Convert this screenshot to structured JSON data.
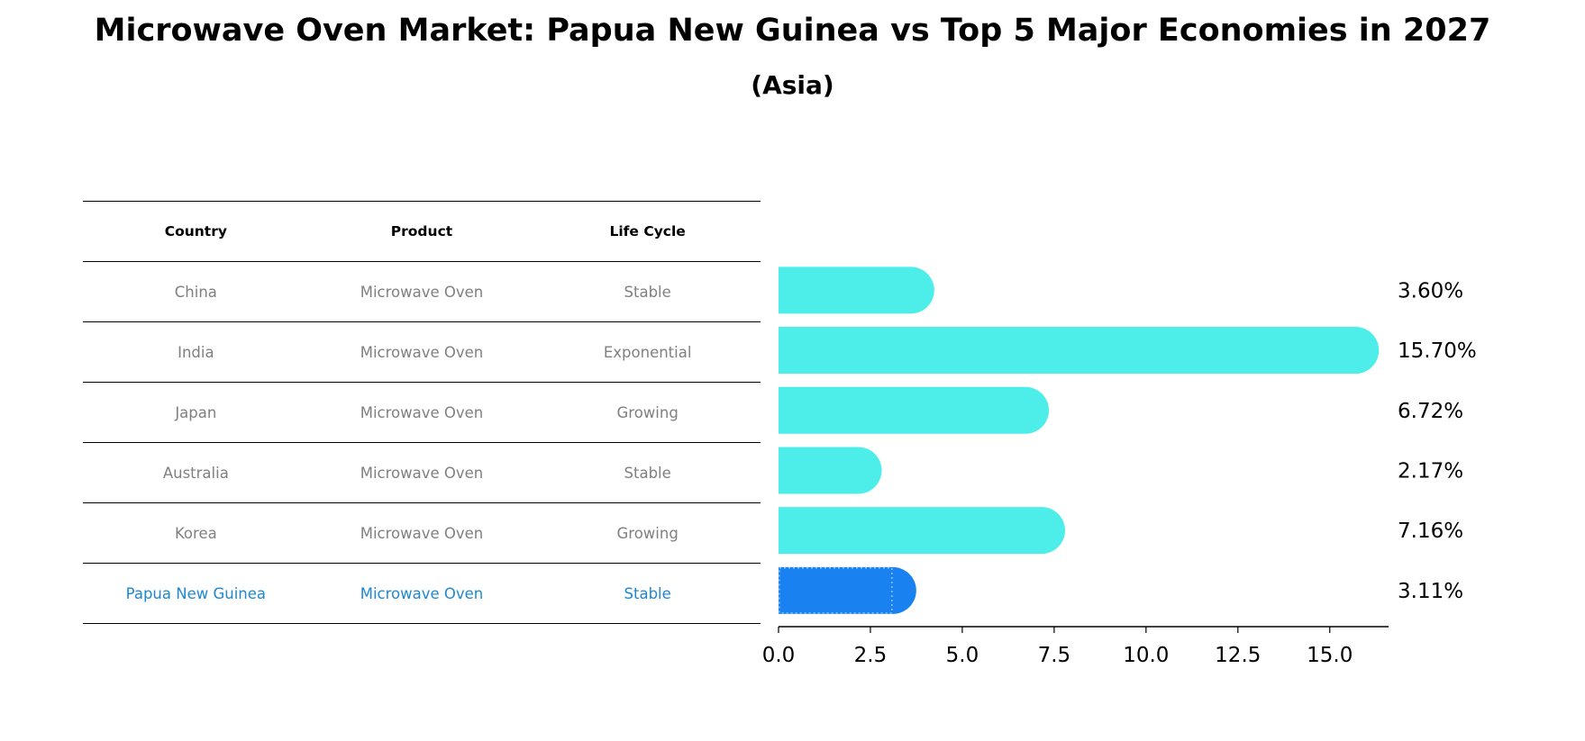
{
  "title": "Microwave Oven Market: Papua New Guinea vs Top 5 Major Economies in 2027",
  "subtitle": "(Asia)",
  "table": {
    "headers": [
      "Country",
      "Product",
      "Life Cycle"
    ],
    "rows": [
      {
        "country": "China",
        "product": "Microwave Oven",
        "life_cycle": "Stable"
      },
      {
        "country": "India",
        "product": "Microwave Oven",
        "life_cycle": "Exponential"
      },
      {
        "country": "Japan",
        "product": "Microwave Oven",
        "life_cycle": "Growing"
      },
      {
        "country": "Australia",
        "product": "Microwave Oven",
        "life_cycle": "Stable"
      },
      {
        "country": "Korea",
        "product": "Microwave Oven",
        "life_cycle": "Growing"
      },
      {
        "country": "Papua New Guinea",
        "product": "Microwave Oven",
        "life_cycle": "Stable"
      }
    ]
  },
  "chart_data": {
    "type": "bar",
    "orientation": "horizontal",
    "categories": [
      "China",
      "India",
      "Japan",
      "Australia",
      "Korea",
      "Papua New Guinea"
    ],
    "values": [
      3.6,
      15.7,
      6.72,
      2.17,
      7.16,
      3.11
    ],
    "value_labels": [
      "3.60%",
      "15.70%",
      "6.72%",
      "2.17%",
      "7.16%",
      "3.11%"
    ],
    "highlight": "Papua New Guinea",
    "xlim": [
      0,
      16.6
    ],
    "xticks": [
      0,
      2.5,
      5,
      7.5,
      10,
      12.5,
      15
    ],
    "xtick_labels": [
      "0.0",
      "2.5",
      "5.0",
      "7.5",
      "10.0",
      "12.5",
      "15.0"
    ],
    "xlabel": "",
    "ylabel": "",
    "colors": {
      "default": "#4deeea",
      "highlight": "#1982f0",
      "text": "#000000"
    }
  }
}
